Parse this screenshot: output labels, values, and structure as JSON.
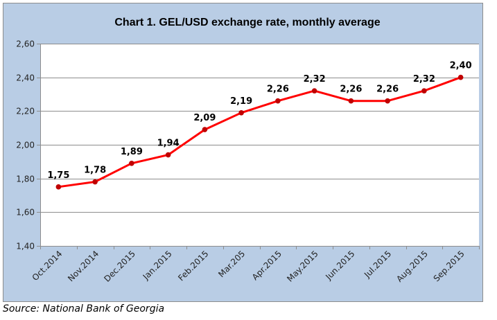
{
  "chart_data": {
    "type": "line",
    "title": "Chart 1. GEL/USD exchange rate, monthly average",
    "xlabel": "",
    "ylabel": "",
    "categories": [
      "Oct.2014",
      "Nov.2014",
      "Dec.2015",
      "Jan.2015",
      "Feb.2015",
      "Mar.205",
      "Apr.2015",
      "May.2015",
      "Jun.2015",
      "Jul.2015",
      "Aug.2015",
      "Sep.2015"
    ],
    "series": [
      {
        "name": "GEL/USD",
        "values": [
          1.75,
          1.78,
          1.89,
          1.94,
          2.09,
          2.19,
          2.26,
          2.32,
          2.26,
          2.26,
          2.32,
          2.4
        ],
        "labels": [
          "1,75",
          "1,78",
          "1,89",
          "1,94",
          "2,09",
          "2,19",
          "2,26",
          "2,32",
          "2,26",
          "2,26",
          "2,32",
          "2,40"
        ],
        "color": "#ff0000",
        "marker_color": "#c00000"
      }
    ],
    "ylim": [
      1.4,
      2.6
    ],
    "yticks": [
      1.4,
      1.6,
      1.8,
      2.0,
      2.2,
      2.4,
      2.6
    ],
    "ytick_labels": [
      "1,40",
      "1,60",
      "1,80",
      "2,00",
      "2,20",
      "2,40",
      "2,60"
    ],
    "grid": true,
    "legend": "none",
    "background_color": "#b9cde5",
    "plot_background": "#ffffff"
  },
  "source": "Source: National Bank of Georgia"
}
